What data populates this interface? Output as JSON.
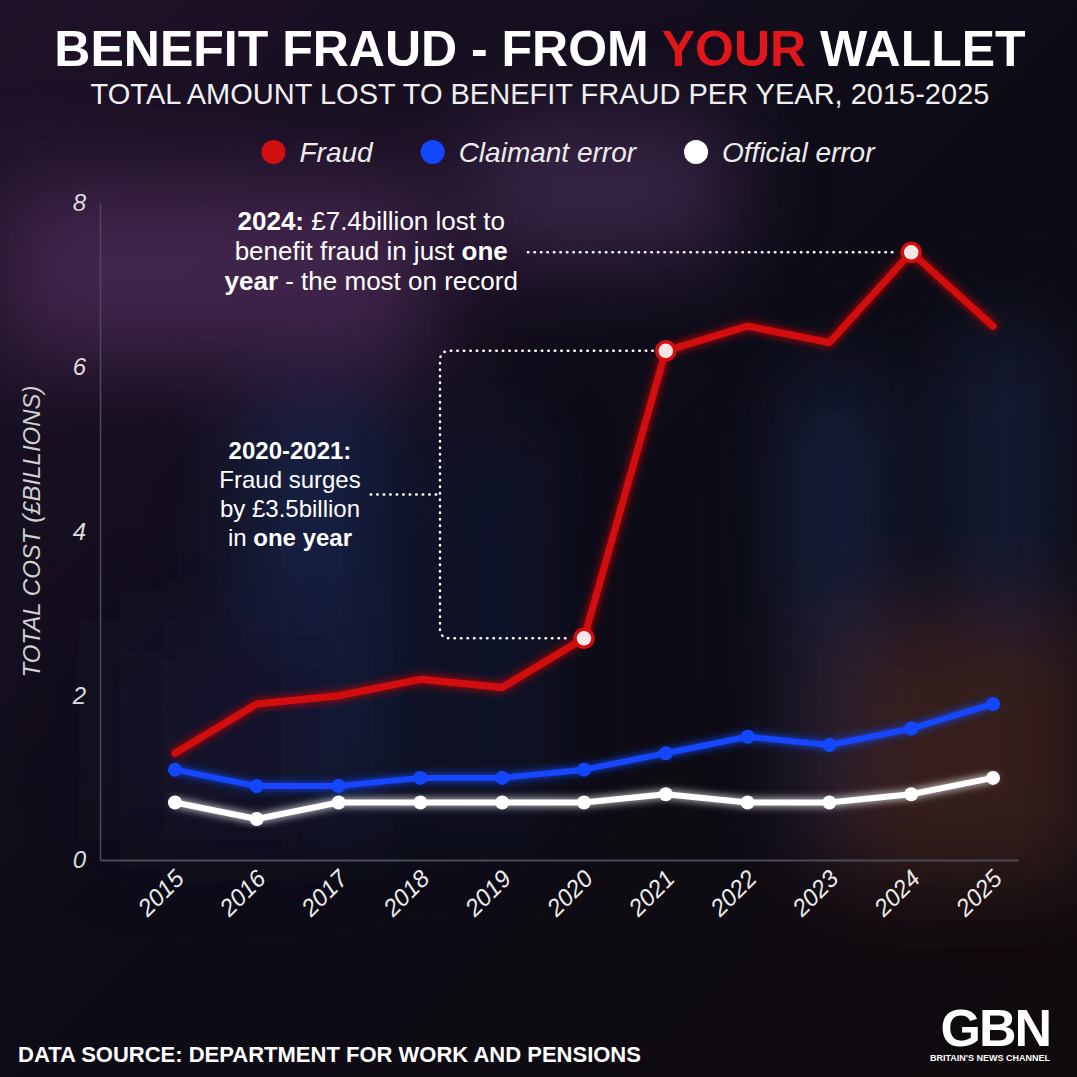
{
  "chart_data": {
    "type": "line",
    "title": "BENEFIT FRAUD - FROM YOUR WALLET",
    "title_emphasis": "YOUR",
    "subtitle": "TOTAL AMOUNT LOST TO BENEFIT FRAUD PER YEAR, 2015-2025",
    "y_label": "TOTAL COST (£BILLIONS)",
    "categories": [
      "2015",
      "2016",
      "2017",
      "2018",
      "2019",
      "2020",
      "2021",
      "2022",
      "2023",
      "2024",
      "2025"
    ],
    "series": [
      {
        "name": "Fraud",
        "color": "#d10f0f",
        "marker": "none",
        "values": [
          1.3,
          1.9,
          2.0,
          2.2,
          2.1,
          2.7,
          6.2,
          6.5,
          6.3,
          7.4,
          6.5
        ]
      },
      {
        "name": "Claimant error",
        "color": "#1247ff",
        "marker": "circle",
        "values": [
          1.1,
          0.9,
          0.9,
          1.0,
          1.0,
          1.1,
          1.3,
          1.5,
          1.4,
          1.6,
          1.9
        ]
      },
      {
        "name": "Official error",
        "color": "#ffffff",
        "marker": "circle",
        "values": [
          0.7,
          0.5,
          0.7,
          0.7,
          0.7,
          0.7,
          0.8,
          0.7,
          0.7,
          0.8,
          1.0
        ]
      }
    ],
    "ylim": [
      0,
      8
    ],
    "yticks": [
      0,
      2,
      4,
      6,
      8
    ],
    "grid": false,
    "legend": "top",
    "annotations": [
      {
        "x": "2024",
        "lines": [
          "2024: £7.4billion lost to",
          "benefit fraud in just one",
          "year - the most on record"
        ],
        "emphasis": [
          "2024:",
          "one",
          "year"
        ]
      },
      {
        "x": [
          "2020",
          "2021"
        ],
        "lines": [
          "2020-2021:",
          "Fraud surges",
          "by £3.5billion",
          "in one year"
        ],
        "emphasis": [
          "2020-2021:",
          "one year"
        ]
      }
    ],
    "source": "DATA SOURCE: DEPARTMENT FOR WORK AND PENSIONS",
    "logo": "GBN",
    "logo_tagline": "BRITAIN'S NEWS CHANNEL"
  }
}
